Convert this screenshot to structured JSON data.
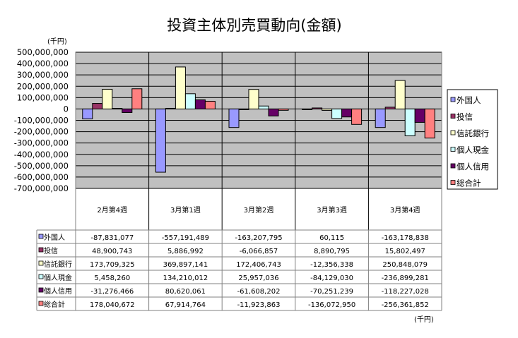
{
  "chart_data": {
    "type": "bar",
    "title": "投資主体別売買動向(金額)",
    "unit_label": "(千円)",
    "table_unit_label": "(千円)",
    "categories": [
      "2月第4週",
      "3月第1週",
      "3月第2週",
      "3月第3週",
      "3月第4週"
    ],
    "ylim": [
      -700000000,
      500000000
    ],
    "yticks": [
      500000000,
      400000000,
      300000000,
      200000000,
      100000000,
      0,
      -100000000,
      -200000000,
      -300000000,
      -400000000,
      -500000000,
      -600000000,
      -700000000
    ],
    "ytick_labels": [
      "500,000,000",
      "400,000,000",
      "300,000,000",
      "200,000,000",
      "100,000,000",
      "0",
      "-100,000,000",
      "-200,000,000",
      "-300,000,000",
      "-400,000,000",
      "-500,000,000",
      "-600,000,000",
      "-700,000,000"
    ],
    "grid": true,
    "legend": "right",
    "series": [
      {
        "name": "外国人",
        "color": "#9999FF",
        "values": [
          -87831077,
          -557191489,
          -163207795,
          60115,
          -163178838
        ],
        "labels": [
          "-87,831,077",
          "-557,191,489",
          "-163,207,795",
          "60,115",
          "-163,178,838"
        ]
      },
      {
        "name": "投信",
        "color": "#993366",
        "values": [
          48900743,
          5886992,
          -6066857,
          8890795,
          15802497
        ],
        "labels": [
          "48,900,743",
          "5,886,992",
          "-6,066,857",
          "8,890,795",
          "15,802,497"
        ]
      },
      {
        "name": "信託銀行",
        "color": "#FFFFCC",
        "values": [
          173709325,
          369897141,
          172406743,
          -12356338,
          250848079
        ],
        "labels": [
          "173,709,325",
          "369,897,141",
          "172,406,743",
          "-12,356,338",
          "250,848,079"
        ]
      },
      {
        "name": "個人現金",
        "color": "#CCFFFF",
        "values": [
          5458260,
          134210012,
          25957036,
          -84129030,
          -236899281
        ],
        "labels": [
          "5,458,260",
          "134,210,012",
          "25,957,036",
          "-84,129,030",
          "-236,899,281"
        ]
      },
      {
        "name": "個人信用",
        "color": "#660066",
        "values": [
          -31276466,
          80620061,
          -61608202,
          -70251239,
          -118227028
        ],
        "labels": [
          "-31,276,466",
          "80,620,061",
          "-61,608,202",
          "-70,251,239",
          "-118,227,028"
        ]
      },
      {
        "name": "総合計",
        "color": "#FF8080",
        "values": [
          178040672,
          67914764,
          -11923863,
          -136072950,
          -256361852
        ],
        "labels": [
          "178,040,672",
          "67,914,764",
          "-11,923,863",
          "-136,072,950",
          "-256,361,852"
        ]
      }
    ],
    "plot_background": "#C0C0C0"
  }
}
